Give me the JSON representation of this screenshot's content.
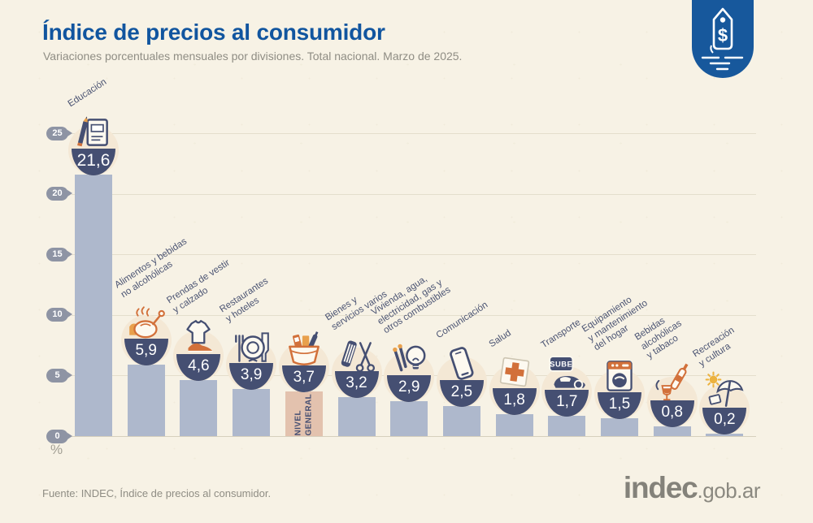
{
  "header": {
    "title": "Índice de precios al consumidor",
    "subtitle": "Variaciones porcentuales mensuales por divisiones. Total nacional. Marzo de 2025."
  },
  "header_badge": {
    "icon": "price-tag-icon",
    "symbol": "$"
  },
  "chart_data": {
    "type": "bar",
    "title": "Índice de precios al consumidor",
    "subtitle": "Variaciones porcentuales mensuales por divisiones. Total nacional. Marzo de 2025.",
    "ylabel": "%",
    "ylim": [
      0,
      25
    ],
    "yticks": [
      0,
      5,
      10,
      15,
      20,
      25
    ],
    "grid": "horizontal",
    "legend": "none",
    "categories": [
      "Educación",
      "Alimentos y bebidas\nno alcohólicas",
      "Prendas de vestir\ny calzado",
      "Restaurantes\ny hoteles",
      "Nivel general",
      "Bienes y\nservicios varios",
      "Vivienda, agua,\nelectricidad, gas y\notros combustibles",
      "Comunicación",
      "Salud",
      "Transporte",
      "Equipamiento\ny mantenimiento\ndel hogar",
      "Bebidas\nalcohólicas\ny tabaco",
      "Recreación\ny cultura"
    ],
    "values": [
      21.6,
      5.9,
      4.6,
      3.9,
      3.7,
      3.2,
      2.9,
      2.5,
      1.8,
      1.7,
      1.5,
      0.8,
      0.2
    ],
    "value_labels": [
      "21,6",
      "5,9",
      "4,6",
      "3,9",
      "3,7",
      "3,2",
      "2,9",
      "2,5",
      "1,8",
      "1,7",
      "1,5",
      "0,8",
      "0,2"
    ],
    "icons": [
      "notebook-pencil-icon",
      "roast-chicken-icon",
      "clothing-shoe-icon",
      "restaurant-plate-icon",
      "shopping-basket-icon",
      "comb-scissors-icon",
      "lightbulb-matches-icon",
      "smartphone-icon",
      "first-aid-cross-icon",
      "sube-card-car-icon",
      "washing-machine-icon",
      "drinks-tobacco-icon",
      "beach-umbrella-sun-icon"
    ],
    "highlight": {
      "index": 4,
      "category": "Nivel general",
      "bar_label": "NIVEL\nGENERAL",
      "bar_color": "#e3c2ae"
    },
    "colors": {
      "bar": "#aeb8cc",
      "badge": "#454f72",
      "halo": "#f4e8d5",
      "accent_orange": "#d2703a",
      "brand_blue": "#17589c"
    },
    "transport_card_label": "SUBE"
  },
  "footer": {
    "source": "Fuente: INDEC, Índice de precios al consumidor.",
    "logo_main": "indec",
    "logo_suffix": ".gob.ar"
  }
}
